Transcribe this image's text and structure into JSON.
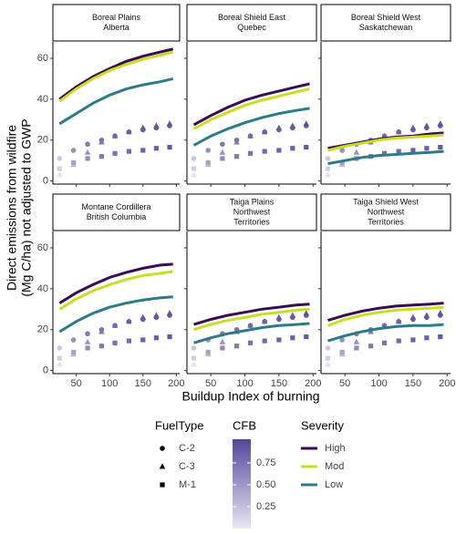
{
  "chart_data": {
    "type": "line",
    "y_label": [
      "Direct emissions from wildfire",
      "(Mg C/ha) not adjusted to GWP"
    ],
    "x_label": "Buildup Index of burning",
    "xlim": [
      15,
      205
    ],
    "xticks": [
      50,
      100,
      150,
      200
    ],
    "ylim": [
      -1.5,
      68
    ],
    "yticks": [
      0,
      20,
      40,
      60
    ],
    "line_x": [
      25,
      50,
      75,
      100,
      125,
      150,
      175,
      195
    ],
    "point_x": [
      25,
      46,
      67,
      88,
      108,
      129,
      150,
      170,
      190
    ],
    "severity": {
      "title": "Severity",
      "series": [
        {
          "name": "High",
          "color": "#3d0b4f"
        },
        {
          "name": "Mod",
          "color": "#c6e021"
        },
        {
          "name": "Low",
          "color": "#2b7b8b"
        }
      ]
    },
    "fuel": {
      "title": "FuelType",
      "series": [
        {
          "name": "C-2",
          "shape": "circle",
          "values": [
            11,
            15,
            18,
            20,
            22,
            24,
            25,
            26,
            27
          ],
          "cfb": [
            0.2,
            0.55,
            0.7,
            0.75,
            0.8,
            0.85,
            0.85,
            0.9,
            0.9
          ]
        },
        {
          "name": "C-3",
          "shape": "triangle",
          "values": [
            3,
            8,
            14,
            19,
            22,
            24,
            26,
            27,
            28
          ],
          "cfb": [
            0.05,
            0.3,
            0.55,
            0.7,
            0.8,
            0.85,
            0.9,
            0.9,
            0.95
          ]
        },
        {
          "name": "M-1",
          "shape": "square",
          "values": [
            6,
            9,
            11,
            12,
            13.5,
            14.5,
            15,
            16,
            16.5
          ],
          "cfb": [
            0.15,
            0.45,
            0.6,
            0.7,
            0.75,
            0.8,
            0.85,
            0.85,
            0.9
          ]
        }
      ]
    },
    "cfb": {
      "title": "CFB",
      "lim": [
        0,
        1.02
      ],
      "ticks": [
        0.25,
        {
          "value": 0.5,
          "label": "0.50"
        },
        0.75
      ],
      "colors": [
        "#e8e6f2",
        "#54469d"
      ]
    },
    "panels": [
      {
        "title": [
          "Boreal Plains",
          "Alberta"
        ],
        "series": [
          {
            "values": [
              40,
              46,
              51,
              55,
              58.5,
              61,
              63,
              64.5
            ]
          },
          {
            "values": [
              39,
              45,
              50,
              54,
              57,
              59.5,
              61.5,
              63
            ]
          },
          {
            "values": [
              28,
              33,
              38,
              42,
              45,
              47,
              48.5,
              50
            ]
          }
        ]
      },
      {
        "title": [
          "Boreal Shield East",
          "Quebec"
        ],
        "series": [
          {
            "values": [
              27.5,
              32,
              36,
              39.5,
              42,
              44,
              46,
              47.5
            ]
          },
          {
            "values": [
              25.5,
              30,
              33.5,
              37,
              39.5,
              41.5,
              43.5,
              45
            ]
          },
          {
            "values": [
              17.5,
              22,
              25.5,
              28.5,
              31,
              33,
              34.5,
              35.5
            ]
          }
        ]
      },
      {
        "title": [
          "Boreal Shield West",
          "Saskatchewan"
        ],
        "series": [
          {
            "values": [
              16,
              17.5,
              19,
              20.5,
              21.5,
              22,
              23,
              23.5
            ]
          },
          {
            "values": [
              15,
              17,
              18.5,
              20,
              21,
              21.5,
              22,
              22.5
            ]
          },
          {
            "values": [
              8.5,
              10,
              11.5,
              12.5,
              13,
              13.5,
              14,
              14.5
            ]
          }
        ]
      },
      {
        "title": [
          "Montane Cordillera",
          "British Columbia"
        ],
        "series": [
          {
            "values": [
              33,
              38,
              42,
              45.5,
              48,
              50,
              51.5,
              52
            ]
          },
          {
            "values": [
              30,
              35,
              39,
              42,
              44.5,
              46.5,
              47.5,
              48.5
            ]
          },
          {
            "values": [
              19,
              24,
              28,
              31,
              33,
              34.5,
              35.5,
              36
            ]
          }
        ]
      },
      {
        "title": [
          "Taiga Plains",
          "Northwest",
          "Territories"
        ],
        "series": [
          {
            "values": [
              22.5,
              25,
              27,
              28.5,
              30,
              31,
              32,
              32.5
            ]
          },
          {
            "values": [
              20,
              22.5,
              24.5,
              26,
              27.5,
              28.5,
              29.5,
              30
            ]
          },
          {
            "values": [
              13.5,
              16,
              18,
              19.5,
              21,
              22,
              22.5,
              23
            ]
          }
        ]
      },
      {
        "title": [
          "Taiga Shield West",
          "Northwest",
          "Territories"
        ],
        "series": [
          {
            "values": [
              24.5,
              27,
              29,
              30.5,
              31.5,
              32,
              32.5,
              33
            ]
          },
          {
            "values": [
              22,
              25,
              27,
              28.5,
              29.5,
              30,
              30.5,
              31
            ]
          },
          {
            "values": [
              14.5,
              17,
              19,
              20.5,
              21.5,
              22,
              22,
              22.5
            ]
          }
        ]
      }
    ]
  }
}
